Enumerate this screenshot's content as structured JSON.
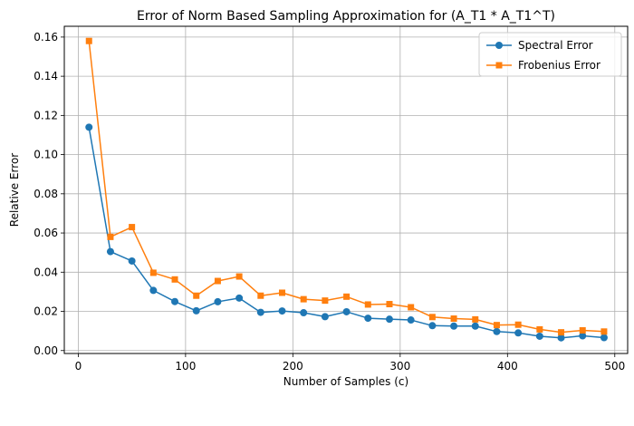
{
  "chart_data": {
    "type": "line",
    "title": "Error of Norm Based Sampling Approximation for (A_T1 * A_T1^T)",
    "xlabel": "Number of Samples (c)",
    "ylabel": "Relative Error",
    "xlim": [
      -13,
      512
    ],
    "ylim": [
      -0.0015,
      0.1655
    ],
    "xticks": [
      0,
      100,
      200,
      300,
      400,
      500
    ],
    "yticks": [
      0.0,
      0.02,
      0.04,
      0.06,
      0.08,
      0.1,
      0.12,
      0.14,
      0.16
    ],
    "ytick_labels": [
      "0.00",
      "0.02",
      "0.04",
      "0.06",
      "0.08",
      "0.10",
      "0.12",
      "0.14",
      "0.16"
    ],
    "grid": true,
    "legend_position": "top-right",
    "x": [
      10,
      30,
      50,
      70,
      90,
      110,
      130,
      150,
      170,
      190,
      210,
      230,
      250,
      270,
      290,
      310,
      330,
      350,
      370,
      390,
      410,
      430,
      450,
      470,
      490
    ],
    "series": [
      {
        "name": "Spectral Error",
        "color": "#1f77b4",
        "marker": "circle",
        "values": [
          0.114,
          0.0505,
          0.0457,
          0.0307,
          0.025,
          0.0203,
          0.0249,
          0.0268,
          0.0195,
          0.0202,
          0.0193,
          0.0173,
          0.0198,
          0.0165,
          0.016,
          0.0156,
          0.0127,
          0.0125,
          0.0125,
          0.0097,
          0.009,
          0.0073,
          0.0065,
          0.0075,
          0.0066
        ]
      },
      {
        "name": "Frobenius Error",
        "color": "#ff7f0e",
        "marker": "square",
        "values": [
          0.158,
          0.058,
          0.063,
          0.0397,
          0.0363,
          0.028,
          0.0355,
          0.0378,
          0.028,
          0.0295,
          0.0262,
          0.0255,
          0.0275,
          0.0235,
          0.0237,
          0.0221,
          0.0171,
          0.0163,
          0.0159,
          0.013,
          0.0132,
          0.0108,
          0.0093,
          0.0103,
          0.0097
        ]
      }
    ]
  }
}
